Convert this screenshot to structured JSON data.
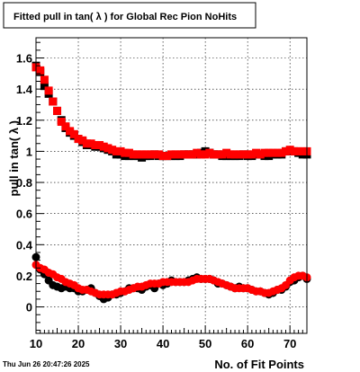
{
  "date_stamp": "Thu Jun 26 20:47:26 2025",
  "chart_data": {
    "type": "scatter",
    "title": "Fitted pull in tan( λ ) for Global Rec Pion NoHits",
    "xlabel": "No. of Fit Points",
    "ylabel": "pull in tan( λ )",
    "xlim": [
      10,
      74
    ],
    "ylim": [
      -0.17,
      1.73
    ],
    "x_ticks": [
      10,
      20,
      30,
      40,
      50,
      60,
      70
    ],
    "y_ticks": [
      0,
      0.2,
      0.4,
      0.6,
      0.8,
      1,
      1.2,
      1.4,
      1.6
    ],
    "grid": true,
    "legend": "none",
    "series": [
      {
        "marker": "square",
        "color": "#000000",
        "x": [
          10,
          11,
          12,
          13,
          14,
          15,
          16,
          17,
          18,
          19,
          20,
          21,
          22,
          23,
          24,
          25,
          26,
          27,
          28,
          29,
          30,
          31,
          32,
          33,
          34,
          35,
          36,
          37,
          38,
          39,
          40,
          41,
          42,
          43,
          44,
          45,
          46,
          47,
          48,
          49,
          50,
          51,
          52,
          53,
          54,
          55,
          56,
          57,
          58,
          59,
          60,
          61,
          62,
          63,
          64,
          65,
          66,
          67,
          68,
          69,
          70,
          71,
          72,
          73,
          74
        ],
        "values": [
          1.55,
          1.51,
          1.42,
          1.37,
          1.32,
          1.26,
          1.2,
          1.15,
          1.12,
          1.1,
          1.08,
          1.06,
          1.04,
          1.04,
          1.03,
          1.03,
          1.02,
          1.01,
          1.0,
          0.98,
          0.98,
          0.97,
          0.97,
          0.97,
          0.97,
          0.96,
          0.97,
          0.97,
          0.98,
          0.97,
          0.97,
          0.97,
          0.97,
          0.97,
          0.97,
          0.98,
          0.98,
          0.98,
          0.98,
          0.99,
          1.0,
          0.99,
          0.98,
          0.98,
          0.97,
          0.97,
          0.97,
          0.97,
          0.97,
          0.98,
          0.97,
          0.97,
          0.98,
          0.98,
          0.97,
          0.97,
          0.98,
          0.98,
          0.98,
          1.0,
          1.0,
          1.0,
          0.99,
          0.98,
          0.98
        ]
      },
      {
        "marker": "square",
        "color": "#ff0000",
        "x": [
          10,
          11,
          12,
          13,
          14,
          15,
          16,
          17,
          18,
          19,
          20,
          21,
          22,
          23,
          24,
          25,
          26,
          27,
          28,
          29,
          30,
          31,
          32,
          33,
          34,
          35,
          36,
          37,
          38,
          39,
          40,
          41,
          42,
          43,
          44,
          45,
          46,
          47,
          48,
          49,
          50,
          51,
          52,
          53,
          54,
          55,
          56,
          57,
          58,
          59,
          60,
          61,
          62,
          63,
          64,
          65,
          66,
          67,
          68,
          69,
          70,
          71,
          72,
          73,
          74
        ],
        "values": [
          1.54,
          1.52,
          1.46,
          1.39,
          1.32,
          1.26,
          1.19,
          1.16,
          1.13,
          1.11,
          1.08,
          1.07,
          1.05,
          1.05,
          1.04,
          1.04,
          1.03,
          1.02,
          1.01,
          1.0,
          1.0,
          0.99,
          0.99,
          0.98,
          0.98,
          0.98,
          0.98,
          0.98,
          0.98,
          0.98,
          0.97,
          0.97,
          0.98,
          0.98,
          0.98,
          0.98,
          0.98,
          0.98,
          0.99,
          0.98,
          0.98,
          0.99,
          0.98,
          0.98,
          0.98,
          0.99,
          0.98,
          0.98,
          0.98,
          0.98,
          0.98,
          0.98,
          0.99,
          0.98,
          0.99,
          0.99,
          0.99,
          0.99,
          0.99,
          1.0,
          1.01,
          1.0,
          1.0,
          1.0,
          1.0
        ]
      },
      {
        "marker": "circle",
        "color": "#000000",
        "x": [
          10,
          11,
          12,
          13,
          14,
          15,
          16,
          17,
          18,
          19,
          20,
          21,
          22,
          23,
          24,
          25,
          26,
          27,
          28,
          29,
          30,
          31,
          32,
          33,
          34,
          35,
          36,
          37,
          38,
          39,
          40,
          41,
          42,
          43,
          44,
          45,
          46,
          47,
          48,
          49,
          50,
          51,
          52,
          53,
          54,
          55,
          56,
          57,
          58,
          59,
          60,
          61,
          62,
          63,
          64,
          65,
          66,
          67,
          68,
          69,
          70,
          71,
          72,
          73,
          74
        ],
        "values": [
          0.32,
          0.24,
          0.21,
          0.17,
          0.14,
          0.13,
          0.12,
          0.13,
          0.12,
          0.12,
          0.1,
          0.1,
          0.11,
          0.12,
          0.09,
          0.07,
          0.05,
          0.06,
          0.08,
          0.08,
          0.09,
          0.1,
          0.12,
          0.12,
          0.12,
          0.11,
          0.13,
          0.14,
          0.12,
          0.15,
          0.14,
          0.15,
          0.17,
          0.16,
          0.16,
          0.16,
          0.17,
          0.18,
          0.19,
          0.18,
          0.18,
          0.18,
          0.17,
          0.15,
          0.15,
          0.14,
          0.13,
          0.12,
          0.13,
          0.12,
          0.12,
          0.11,
          0.1,
          0.1,
          0.09,
          0.08,
          0.09,
          0.11,
          0.11,
          0.13,
          0.16,
          0.17,
          0.19,
          0.2,
          0.18
        ]
      },
      {
        "marker": "circle",
        "color": "#ff0000",
        "x": [
          10,
          11,
          12,
          13,
          14,
          15,
          16,
          17,
          18,
          19,
          20,
          21,
          22,
          23,
          24,
          25,
          26,
          27,
          28,
          29,
          30,
          31,
          32,
          33,
          34,
          35,
          36,
          37,
          38,
          39,
          40,
          41,
          42,
          43,
          44,
          45,
          46,
          47,
          48,
          49,
          50,
          51,
          52,
          53,
          54,
          55,
          56,
          57,
          58,
          59,
          60,
          61,
          62,
          63,
          64,
          65,
          66,
          67,
          68,
          69,
          70,
          71,
          72,
          73,
          74
        ],
        "values": [
          0.27,
          0.25,
          0.24,
          0.22,
          0.21,
          0.19,
          0.18,
          0.16,
          0.15,
          0.14,
          0.12,
          0.11,
          0.11,
          0.1,
          0.09,
          0.08,
          0.08,
          0.08,
          0.08,
          0.09,
          0.1,
          0.1,
          0.11,
          0.12,
          0.13,
          0.13,
          0.14,
          0.15,
          0.15,
          0.15,
          0.16,
          0.16,
          0.16,
          0.16,
          0.16,
          0.16,
          0.16,
          0.17,
          0.18,
          0.18,
          0.18,
          0.18,
          0.17,
          0.16,
          0.15,
          0.14,
          0.13,
          0.12,
          0.12,
          0.12,
          0.12,
          0.11,
          0.1,
          0.1,
          0.09,
          0.09,
          0.1,
          0.11,
          0.12,
          0.14,
          0.17,
          0.19,
          0.2,
          0.2,
          0.19
        ]
      }
    ]
  }
}
